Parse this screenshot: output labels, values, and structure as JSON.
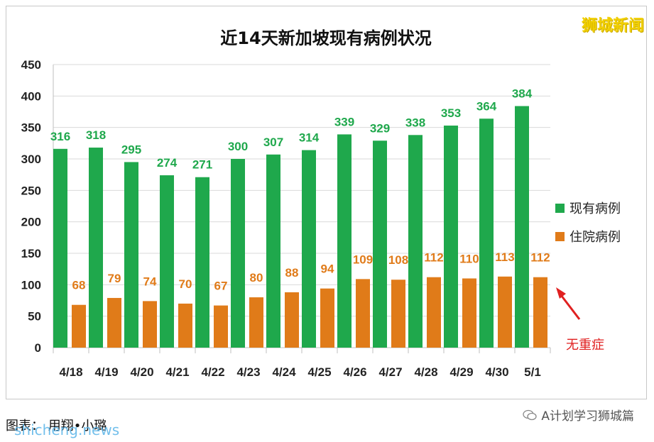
{
  "watermark_top": "狮城新闻",
  "caption": "图表：  用翔•小璐",
  "caption_mark": "shicheng.news",
  "brand": "A计划学习狮城篇",
  "annotation": "无重症",
  "colors": {
    "current": "#1fa84c",
    "hospital": "#e07b19",
    "annotation": "#e02020"
  },
  "chart_data": {
    "type": "bar",
    "title": "近14天新加坡现有病例状况",
    "categories": [
      "4/18",
      "4/19",
      "4/20",
      "4/21",
      "4/22",
      "4/23",
      "4/24",
      "4/25",
      "4/26",
      "4/27",
      "4/28",
      "4/29",
      "4/30",
      "5/1"
    ],
    "series": [
      {
        "name": "现有病例",
        "values": [
          316,
          318,
          295,
          274,
          271,
          300,
          307,
          314,
          339,
          329,
          338,
          353,
          364,
          384
        ]
      },
      {
        "name": "住院病例",
        "values": [
          68,
          79,
          74,
          70,
          67,
          80,
          88,
          94,
          109,
          108,
          112,
          110,
          113,
          112
        ]
      }
    ],
    "yticks": [
      0,
      50,
      100,
      150,
      200,
      250,
      300,
      350,
      400,
      450
    ],
    "ylim": [
      0,
      450
    ],
    "grid": true,
    "legend": "right"
  }
}
